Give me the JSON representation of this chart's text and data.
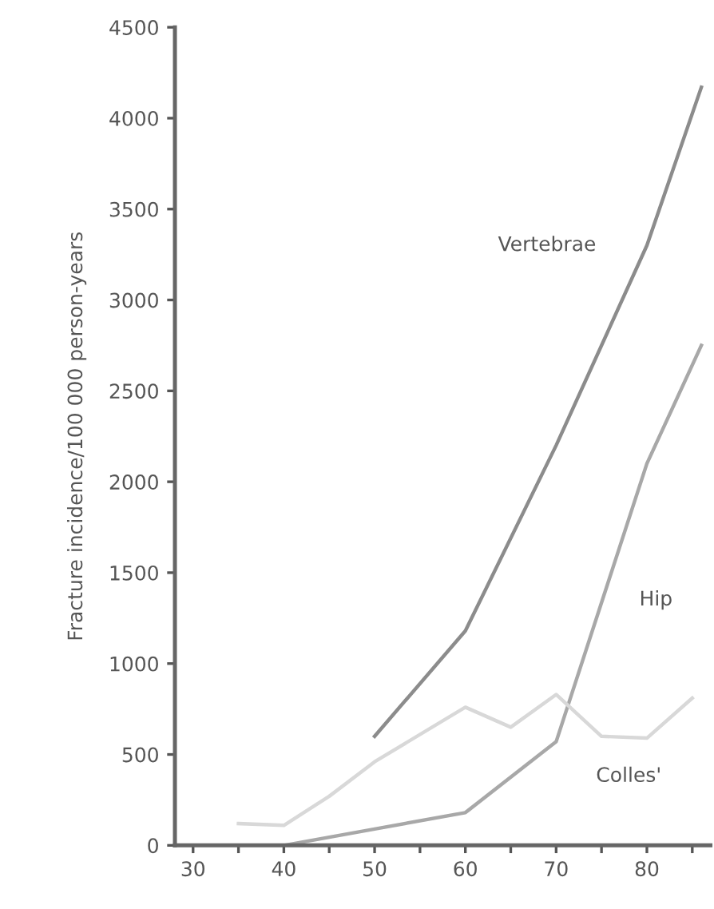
{
  "chart_data": {
    "type": "line",
    "ylabel": "Fracture incidence/100 000 person-years",
    "xlim": [
      28,
      87
    ],
    "xticks": [
      30,
      {
        "value": 35,
        "label": null
      },
      40,
      {
        "value": 45,
        "label": null
      },
      50,
      {
        "value": 55,
        "label": null
      },
      60,
      {
        "value": 65,
        "label": null
      },
      70,
      {
        "value": 75,
        "label": null
      },
      80,
      {
        "value": 85,
        "label": null
      }
    ],
    "ylim": [
      0,
      4500
    ],
    "yticks": [
      0,
      500,
      1000,
      1500,
      2000,
      2500,
      3000,
      3500,
      4000,
      4500
    ],
    "grid": false,
    "legend": false,
    "series": [
      {
        "name": "Vertebrae",
        "color": "#8c8c8c",
        "x": [
          50,
          60,
          70,
          80,
          86
        ],
        "values": [
          600,
          1180,
          2200,
          3300,
          4170
        ]
      },
      {
        "name": "Hip",
        "color": "#a8a8a8",
        "x": [
          40,
          50,
          60,
          70,
          80,
          86
        ],
        "values": [
          0,
          90,
          180,
          570,
          2100,
          2750
        ]
      },
      {
        "name": "Colles'",
        "color": "#d8d8d8",
        "x": [
          35,
          40,
          45,
          50,
          60,
          65,
          70,
          75,
          80,
          85
        ],
        "values": [
          120,
          110,
          270,
          460,
          760,
          650,
          830,
          600,
          590,
          810
        ]
      }
    ]
  }
}
